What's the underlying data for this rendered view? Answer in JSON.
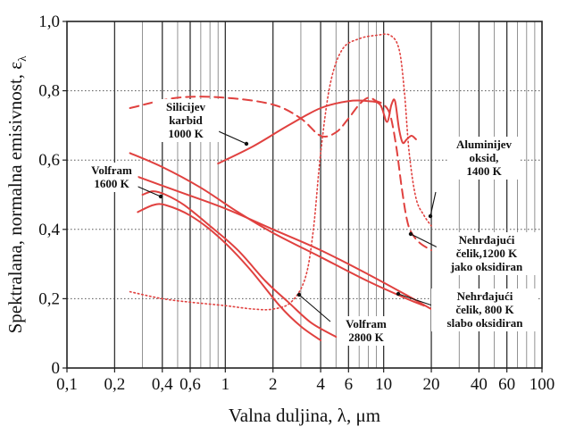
{
  "chart_data": {
    "type": "line",
    "xlabel": "Valna duljina, λ, μm",
    "ylabel": "Spektralana, normalna emisivnost, ε",
    "ylabel_sub": "λ",
    "x_scale": "log",
    "xlim": [
      0.1,
      100
    ],
    "ylim": [
      0,
      1.0
    ],
    "x_ticks": [
      {
        "v": 0.1,
        "label": "0,1"
      },
      {
        "v": 0.2,
        "label": "0,2"
      },
      {
        "v": 0.4,
        "label": "0,4"
      },
      {
        "v": 0.6,
        "label": "0,6"
      },
      {
        "v": 1,
        "label": "1"
      },
      {
        "v": 2,
        "label": "2"
      },
      {
        "v": 4,
        "label": "4"
      },
      {
        "v": 6,
        "label": "6"
      },
      {
        "v": 10,
        "label": "10"
      },
      {
        "v": 20,
        "label": "20"
      },
      {
        "v": 40,
        "label": "40"
      },
      {
        "v": 60,
        "label": "60"
      },
      {
        "v": 100,
        "label": "100"
      }
    ],
    "y_ticks": [
      {
        "v": 0,
        "label": "0"
      },
      {
        "v": 0.2,
        "label": "0,2"
      },
      {
        "v": 0.4,
        "label": "0,4"
      },
      {
        "v": 0.6,
        "label": "0,6"
      },
      {
        "v": 0.8,
        "label": "0,8"
      },
      {
        "v": 1.0,
        "label": "1,0"
      }
    ],
    "color": "#e0413f",
    "series": [
      {
        "style": "solid",
        "points": [
          [
            0.3,
            0.5
          ],
          [
            0.35,
            0.51
          ],
          [
            0.42,
            0.5
          ],
          [
            0.55,
            0.47
          ],
          [
            0.8,
            0.41
          ],
          [
            1.2,
            0.34
          ],
          [
            1.8,
            0.25
          ],
          [
            2.5,
            0.19
          ],
          [
            3.5,
            0.13
          ],
          [
            5,
            0.09
          ]
        ]
      },
      {
        "style": "solid",
        "points": [
          [
            0.28,
            0.45
          ],
          [
            0.35,
            0.47
          ],
          [
            0.42,
            0.47
          ],
          [
            0.6,
            0.44
          ],
          [
            0.9,
            0.38
          ],
          [
            1.4,
            0.29
          ],
          [
            2.2,
            0.18
          ],
          [
            3,
            0.12
          ],
          [
            4,
            0.08
          ]
        ]
      },
      {
        "style": "solid",
        "points": [
          [
            0.25,
            0.62
          ],
          [
            0.4,
            0.58
          ],
          [
            0.7,
            0.52
          ],
          [
            1.2,
            0.45
          ],
          [
            2,
            0.39
          ],
          [
            4,
            0.32
          ],
          [
            8,
            0.25
          ],
          [
            14,
            0.2
          ],
          [
            18,
            0.18
          ]
        ]
      },
      {
        "style": "solid",
        "points": [
          [
            0.25,
            0.56
          ],
          [
            0.5,
            0.51
          ],
          [
            1,
            0.46
          ],
          [
            2,
            0.4
          ],
          [
            4,
            0.34
          ],
          [
            8,
            0.27
          ],
          [
            14,
            0.21
          ],
          [
            20,
            0.17
          ]
        ]
      },
      {
        "style": "solid",
        "points": [
          [
            0.9,
            0.59
          ],
          [
            1.5,
            0.64
          ],
          [
            2.5,
            0.7
          ],
          [
            4,
            0.75
          ],
          [
            6,
            0.77
          ],
          [
            8,
            0.77
          ],
          [
            9.5,
            0.76
          ],
          [
            10.5,
            0.71
          ],
          [
            11.2,
            0.76
          ],
          [
            11.8,
            0.77
          ],
          [
            12.5,
            0.69
          ],
          [
            13.2,
            0.65
          ],
          [
            14,
            0.66
          ],
          [
            15,
            0.67
          ],
          [
            16,
            0.66
          ]
        ]
      },
      {
        "style": "dashed",
        "points": [
          [
            0.25,
            0.75
          ],
          [
            0.5,
            0.78
          ],
          [
            1,
            0.78
          ],
          [
            2,
            0.76
          ],
          [
            3,
            0.72
          ],
          [
            4,
            0.67
          ],
          [
            5,
            0.68
          ],
          [
            6,
            0.72
          ],
          [
            7,
            0.76
          ],
          [
            8,
            0.78
          ],
          [
            9,
            0.77
          ],
          [
            10,
            0.76
          ],
          [
            11,
            0.73
          ],
          [
            12,
            0.64
          ],
          [
            13,
            0.52
          ],
          [
            14,
            0.43
          ],
          [
            15,
            0.39
          ],
          [
            17,
            0.36
          ],
          [
            20,
            0.34
          ]
        ]
      },
      {
        "style": "dotted",
        "points": [
          [
            0.25,
            0.22
          ],
          [
            0.4,
            0.2
          ],
          [
            0.6,
            0.19
          ],
          [
            1,
            0.18
          ],
          [
            1.5,
            0.17
          ],
          [
            2,
            0.17
          ],
          [
            2.6,
            0.19
          ],
          [
            3.2,
            0.26
          ],
          [
            3.6,
            0.4
          ],
          [
            4,
            0.62
          ],
          [
            4.6,
            0.82
          ],
          [
            5.5,
            0.92
          ],
          [
            7,
            0.95
          ],
          [
            9,
            0.96
          ],
          [
            11,
            0.96
          ],
          [
            12.5,
            0.92
          ],
          [
            13.5,
            0.8
          ],
          [
            14.5,
            0.62
          ],
          [
            16,
            0.49
          ],
          [
            18,
            0.44
          ],
          [
            20,
            0.41
          ]
        ]
      }
    ],
    "annotations": [
      {
        "lines": [
          "Silicijev",
          "karbid",
          "1000 K"
        ]
      },
      {
        "lines": [
          "Volfram",
          "1600 K"
        ]
      },
      {
        "lines": [
          "Volfram",
          "2800 K"
        ]
      },
      {
        "lines": [
          "Aluminijev",
          "oksid,",
          "1400 K"
        ]
      },
      {
        "lines": [
          "Nehrđajući",
          "čelik,1200 K",
          "jako oksidiran"
        ]
      },
      {
        "lines": [
          "Nehrđajući",
          "čelik, 800 K",
          "slabo oksidiran"
        ]
      }
    ]
  }
}
